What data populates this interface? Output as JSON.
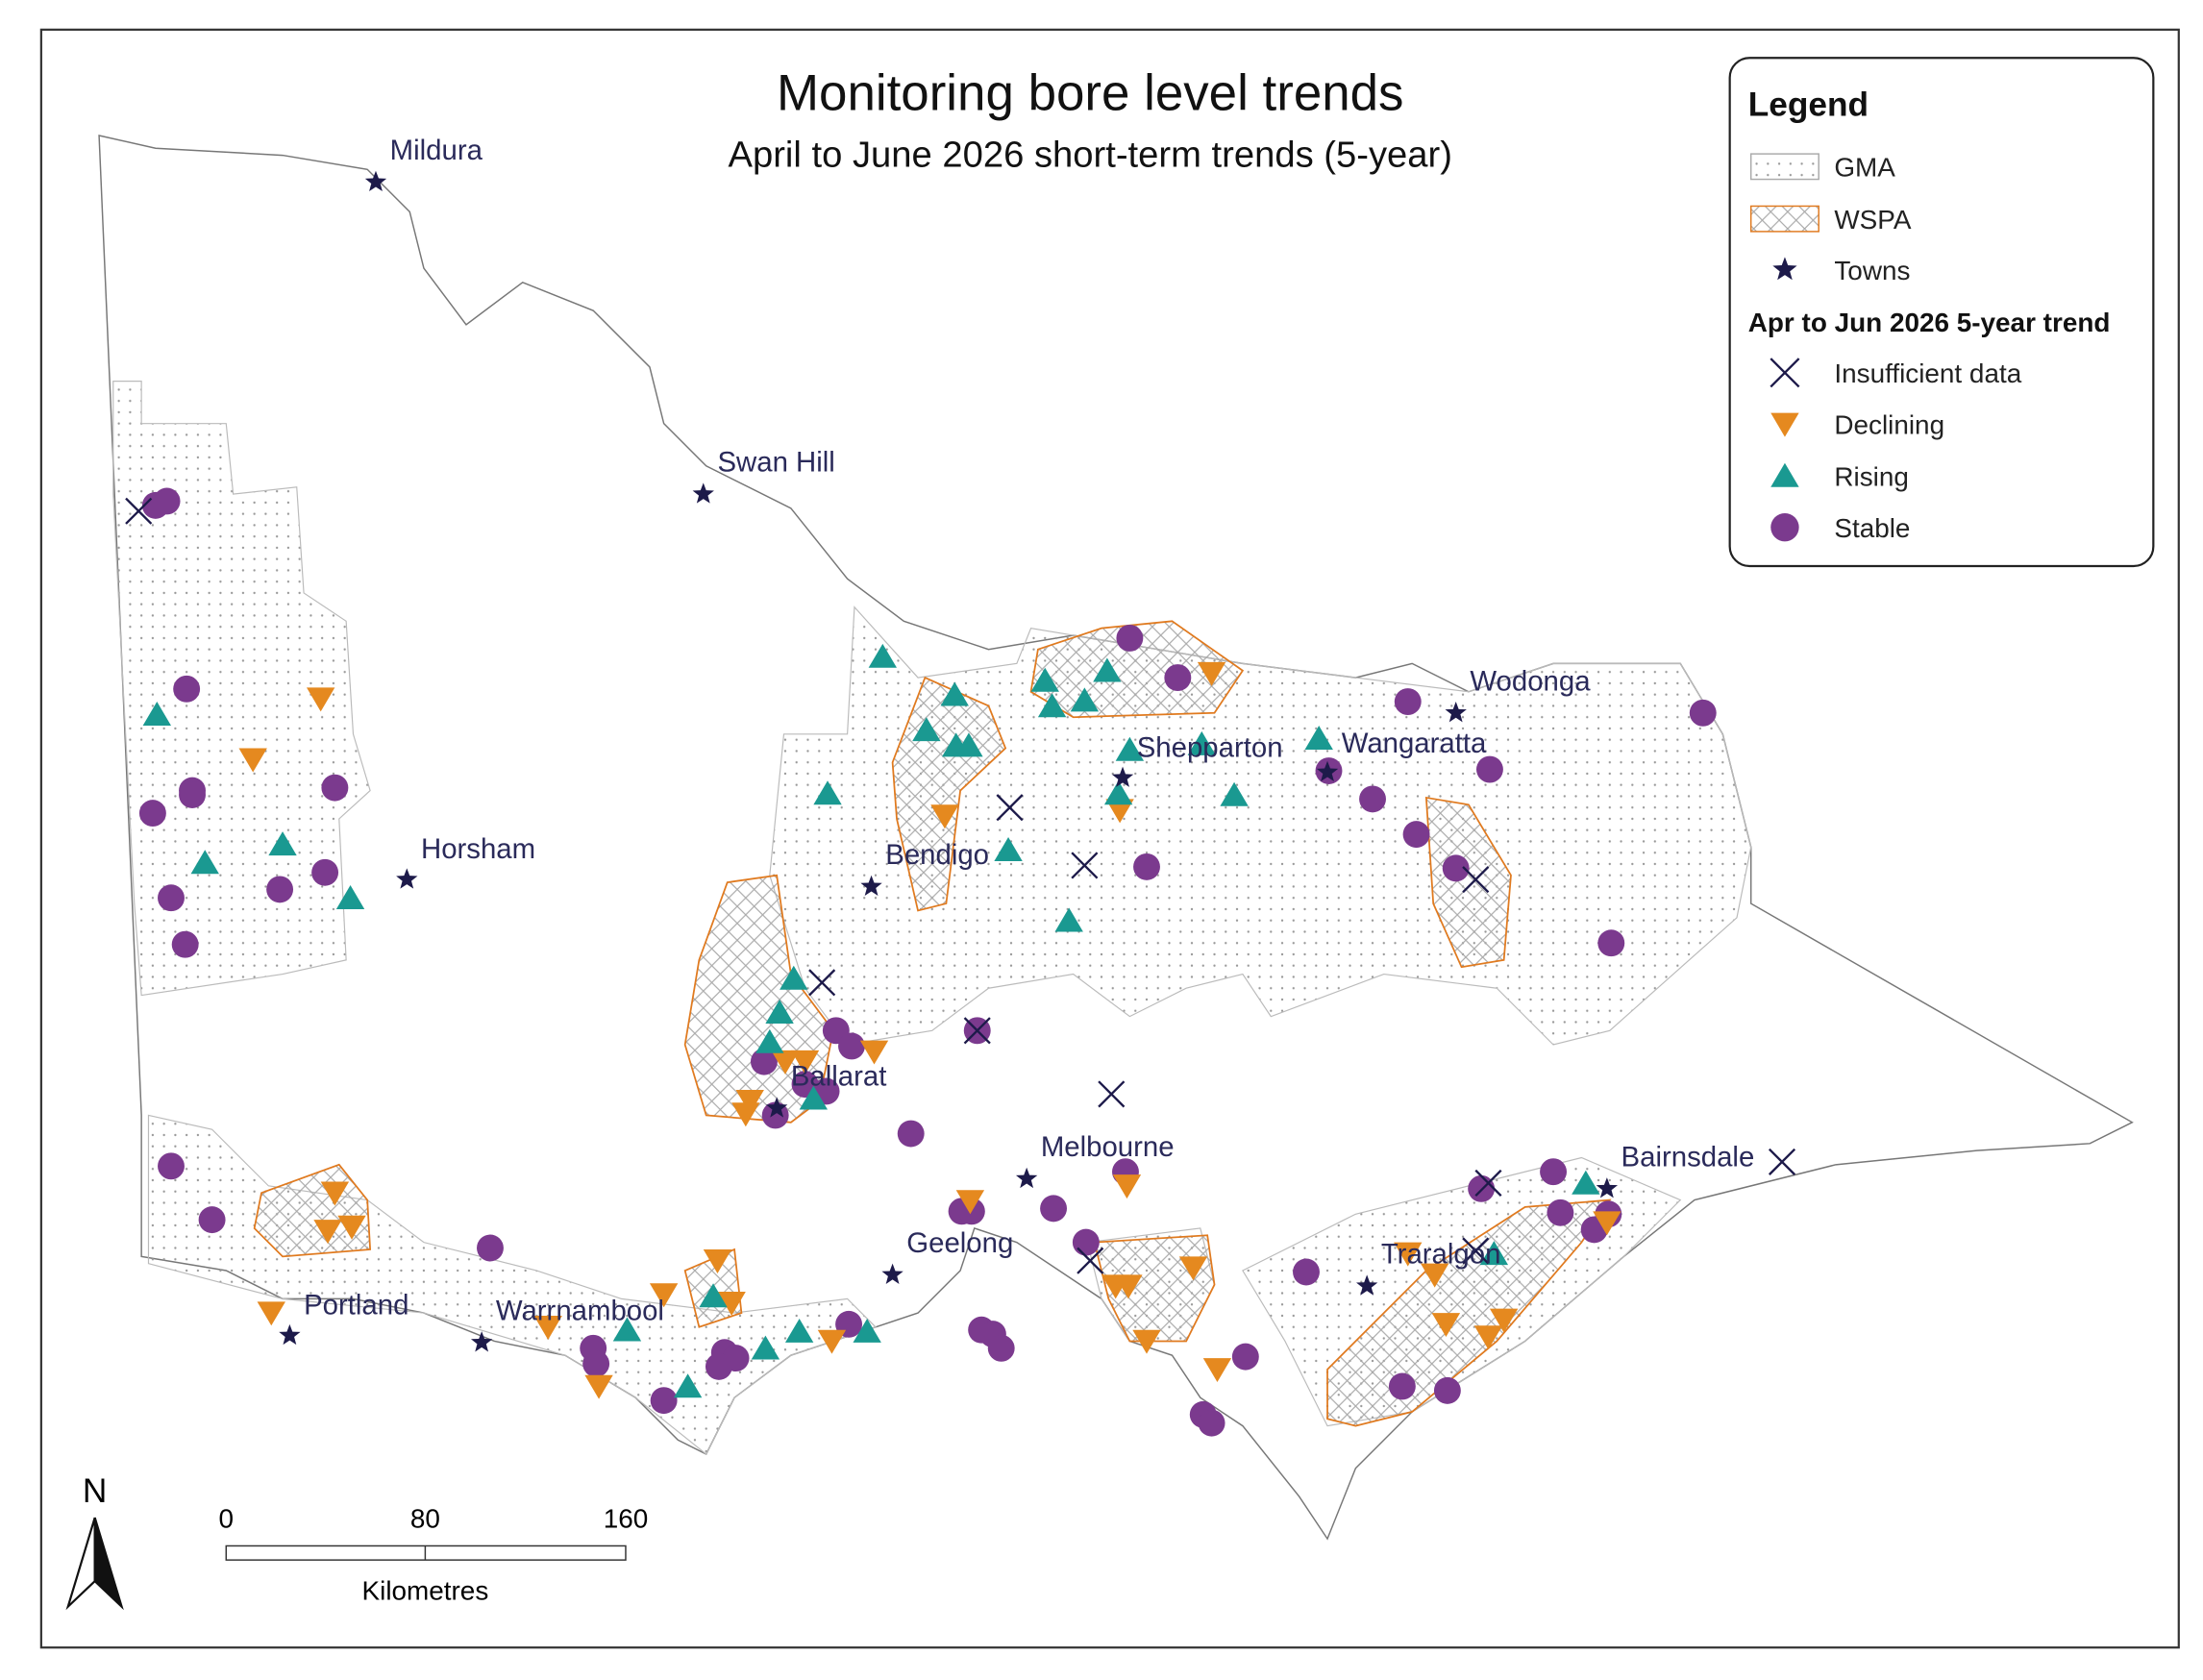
{
  "title": "Monitoring bore level trends",
  "subtitle": "April to June 2026 short-term trends (5-year)",
  "legend": {
    "title": "Legend",
    "areas": [
      "GMA",
      "WSPA",
      "Towns"
    ],
    "trend_title": "Apr to Jun 2026 5-year trend",
    "trends": [
      "Insufficient data",
      "Declining",
      "Rising",
      "Stable"
    ]
  },
  "towns": [
    "Mildura",
    "Swan Hill",
    "Horsham",
    "Bendigo",
    "Shepparton",
    "Wangaratta",
    "Wodonga",
    "Ballarat",
    "Melbourne",
    "Geelong",
    "Portland",
    "Warrnambool",
    "Traralgon",
    "Bairnsdale"
  ],
  "scale_bar": {
    "ticks": [
      "0",
      "80",
      "160"
    ],
    "unit": "Kilometres"
  },
  "north_arrow": "N"
}
